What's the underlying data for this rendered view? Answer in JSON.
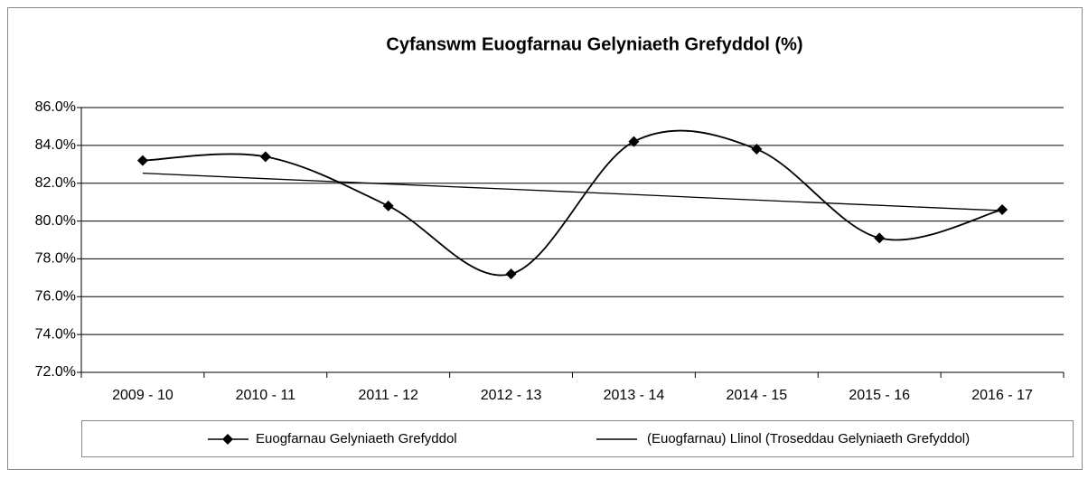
{
  "chart_data": {
    "type": "line",
    "title": "Cyfanswm Euogfarnau Gelyniaeth Grefyddol (%)",
    "categories": [
      "2009 - 10",
      "2010 - 11",
      "2011 - 12",
      "2012 - 13",
      "2013 - 14",
      "2014 - 15",
      "2015 - 16",
      "2016 - 17"
    ],
    "series": [
      {
        "name": "Euogfarnau Gelyniaeth Grefyddol",
        "color": "#000000",
        "marker": "diamond",
        "smooth": true,
        "values": [
          83.2,
          83.4,
          80.8,
          77.2,
          84.2,
          83.8,
          79.1,
          80.6
        ]
      },
      {
        "name": "(Euogfarnau) Llinol (Troseddau Gelyniaeth Grefyddol)",
        "color": "#000000",
        "marker": "none",
        "smooth": false,
        "values": [
          82.53,
          82.24,
          81.96,
          81.68,
          81.4,
          81.11,
          80.83,
          80.55
        ]
      }
    ],
    "ylim": [
      72,
      86
    ],
    "yticks": [
      {
        "value": 72,
        "label": "72.0%"
      },
      {
        "value": 74,
        "label": "74.0%"
      },
      {
        "value": 76,
        "label": "76.0%"
      },
      {
        "value": 78,
        "label": "78.0%"
      },
      {
        "value": 80,
        "label": "80.0%"
      },
      {
        "value": 82,
        "label": "82.0%"
      },
      {
        "value": 84,
        "label": "84.0%"
      },
      {
        "value": 86,
        "label": "86.0%"
      }
    ],
    "grid": true,
    "legend": "bottom"
  }
}
